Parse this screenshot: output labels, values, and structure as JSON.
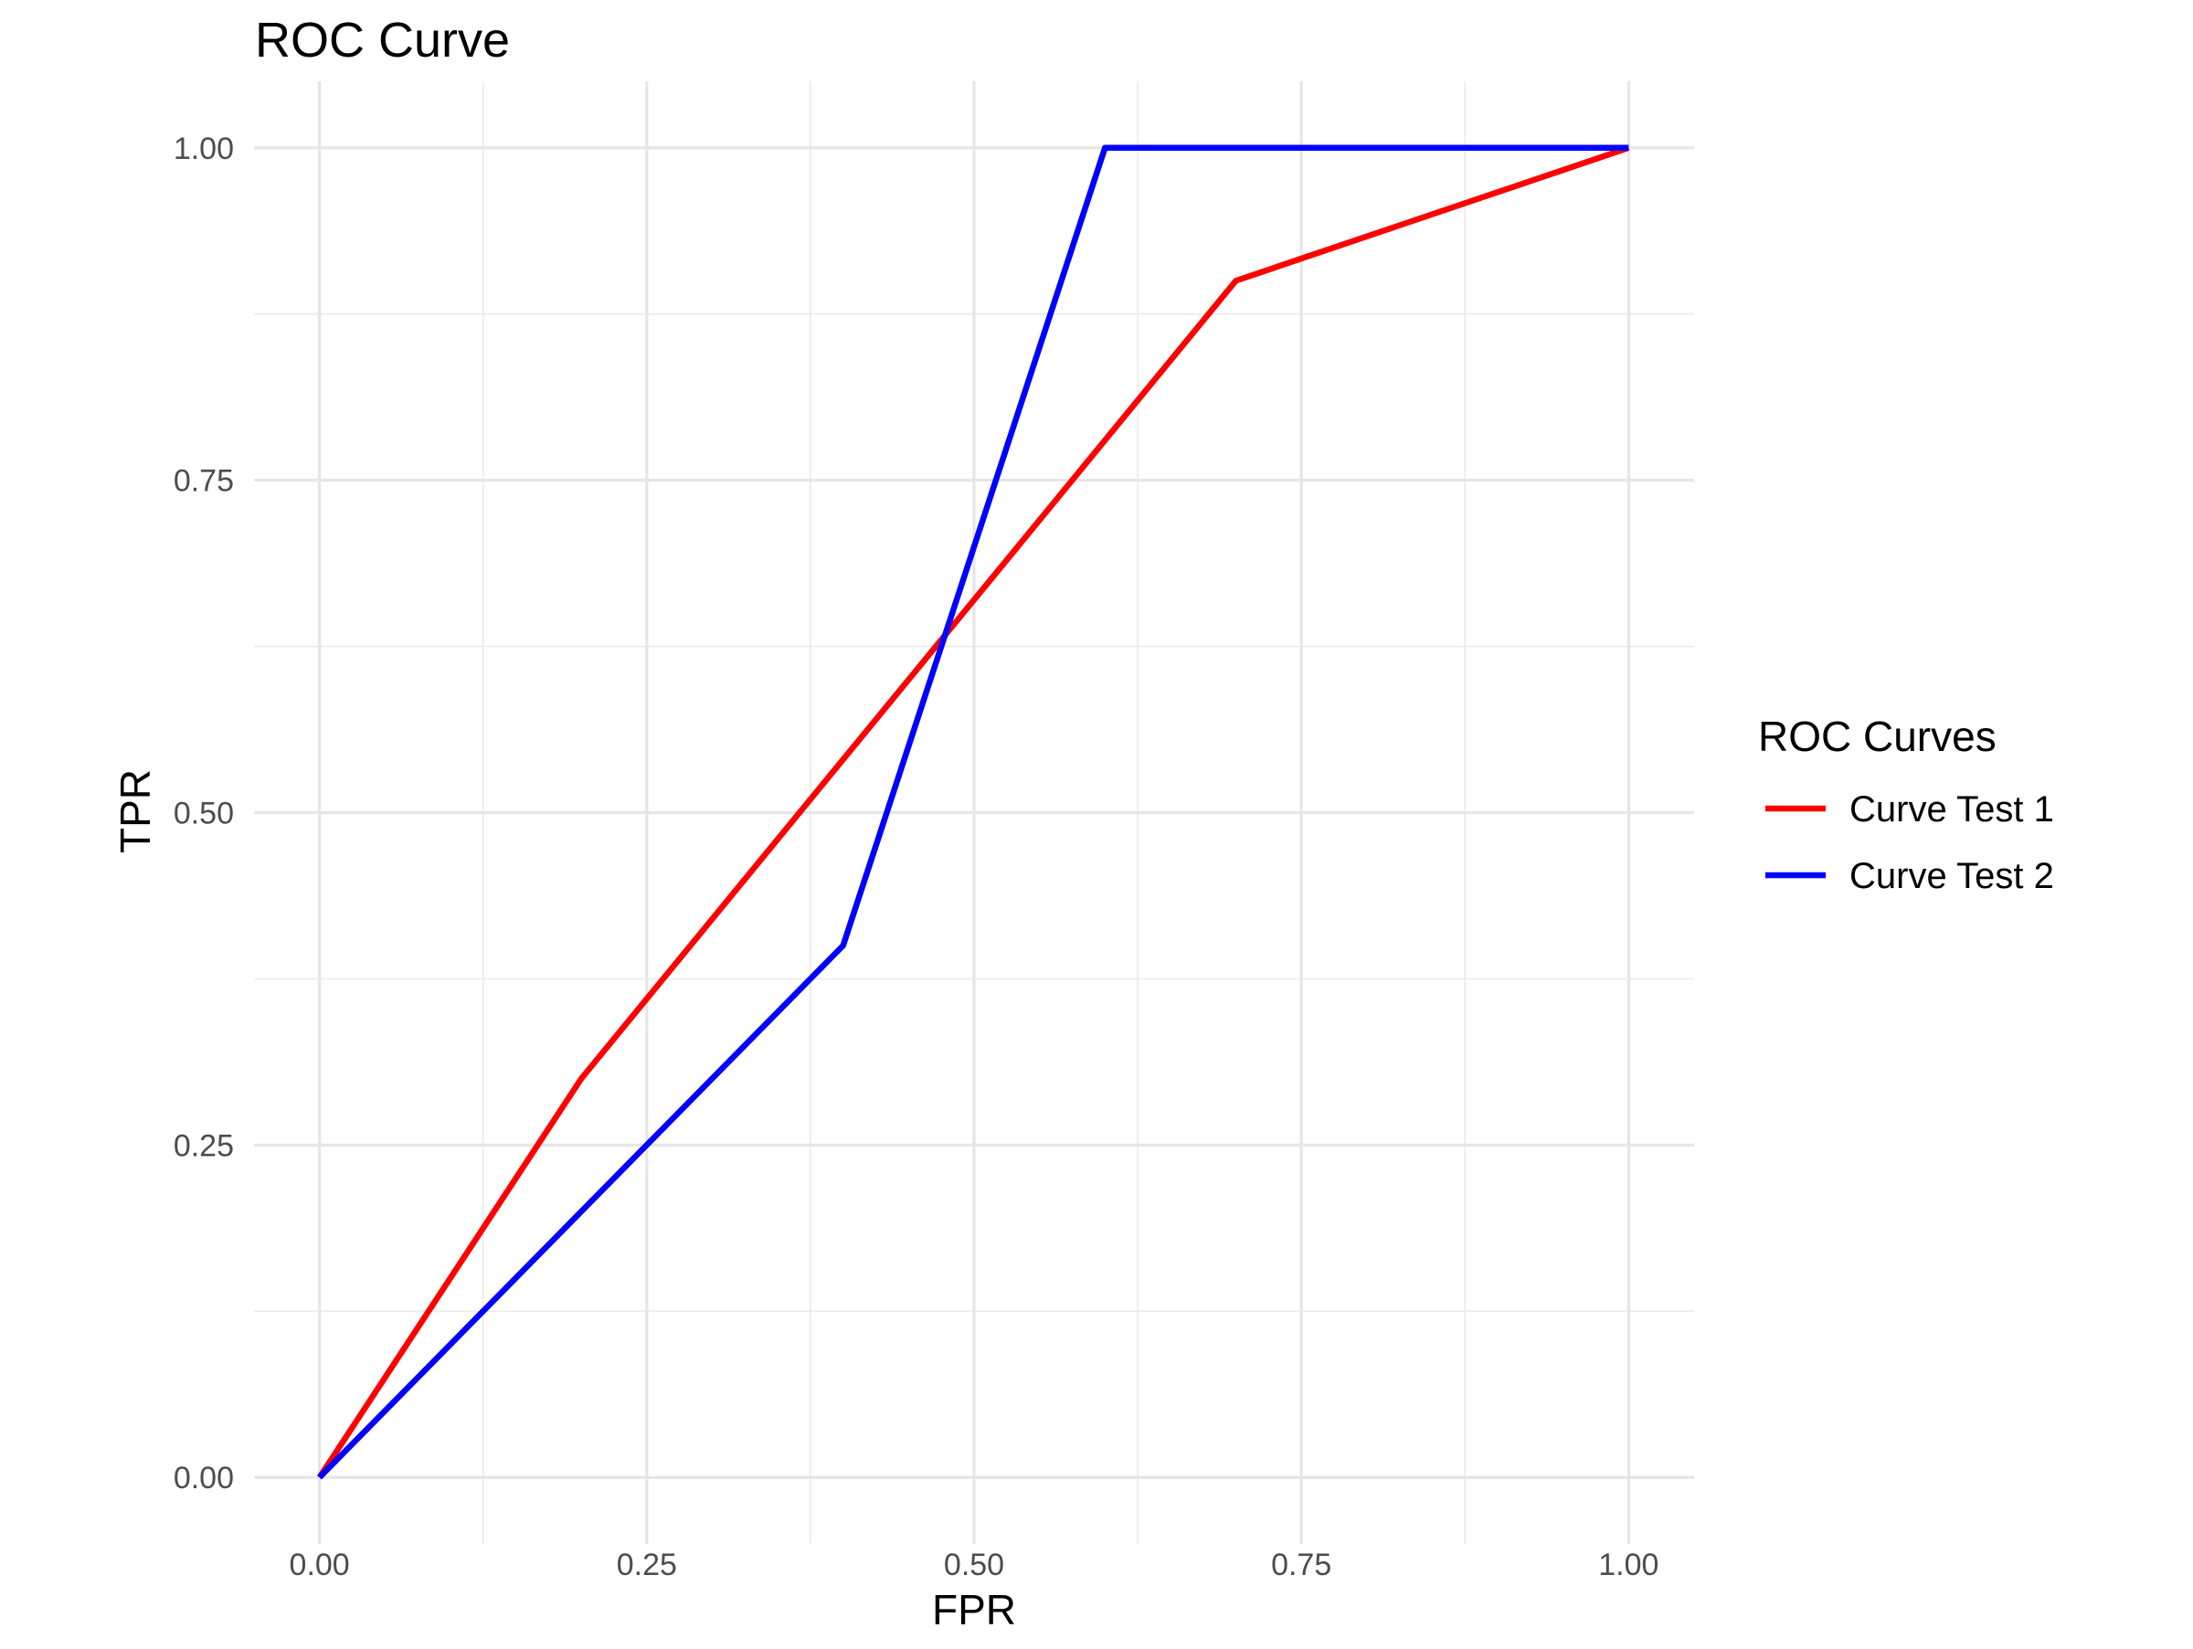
{
  "chart_data": {
    "type": "line",
    "title": "ROC Curve",
    "xlabel": "FPR",
    "ylabel": "TPR",
    "xlim": [
      -0.05,
      1.05
    ],
    "ylim": [
      -0.05,
      1.05
    ],
    "x_ticks": [
      0,
      0.25,
      0.5,
      0.75,
      1
    ],
    "x_tick_labels": [
      "0.00",
      "0.25",
      "0.50",
      "0.75",
      "1.00"
    ],
    "y_ticks": [
      0,
      0.25,
      0.5,
      0.75,
      1
    ],
    "y_tick_labels": [
      "0.00",
      "0.25",
      "0.50",
      "0.75",
      "1.00"
    ],
    "grid": true,
    "legend": {
      "title": "ROC Curves",
      "position": "right"
    },
    "series": [
      {
        "name": "Curve Test 1",
        "color": "#ff0000",
        "x": [
          0,
          0.2,
          0.7,
          1
        ],
        "y": [
          0,
          0.3,
          0.9,
          1
        ]
      },
      {
        "name": "Curve Test 2",
        "color": "#0000ff",
        "x": [
          0,
          0.4,
          0.6,
          1
        ],
        "y": [
          0,
          0.4,
          1,
          1
        ]
      }
    ]
  }
}
